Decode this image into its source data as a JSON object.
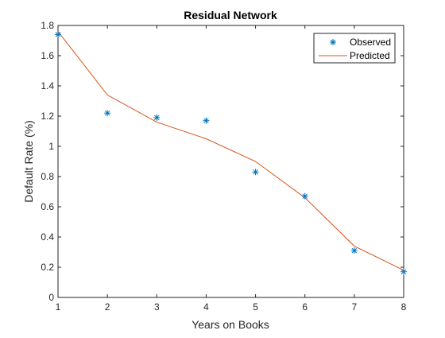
{
  "chart_data": {
    "type": "line",
    "title": "Residual Network",
    "xlabel": "Years on Books",
    "ylabel": "Default Rate (%)",
    "xlim": [
      1,
      8
    ],
    "ylim": [
      0,
      1.8
    ],
    "xticks": [
      "1",
      "2",
      "3",
      "4",
      "5",
      "6",
      "7",
      "8"
    ],
    "yticks": [
      "0",
      "0.2",
      "0.4",
      "0.6",
      "0.8",
      "1",
      "1.2",
      "1.4",
      "1.6",
      "1.8"
    ],
    "grid": false,
    "legend_position": "top-right",
    "series": [
      {
        "name": "Observed",
        "style": "markers",
        "marker": "asterisk",
        "color": "#0072BD",
        "x": [
          1,
          2,
          3,
          4,
          5,
          6,
          7,
          8
        ],
        "y": [
          1.74,
          1.22,
          1.19,
          1.17,
          0.83,
          0.67,
          0.31,
          0.17
        ]
      },
      {
        "name": "Predicted",
        "style": "line",
        "color": "#D95319",
        "x": [
          1,
          2,
          3,
          4,
          5,
          6,
          7,
          8
        ],
        "y": [
          1.76,
          1.34,
          1.16,
          1.05,
          0.9,
          0.66,
          0.34,
          0.18
        ]
      }
    ]
  }
}
